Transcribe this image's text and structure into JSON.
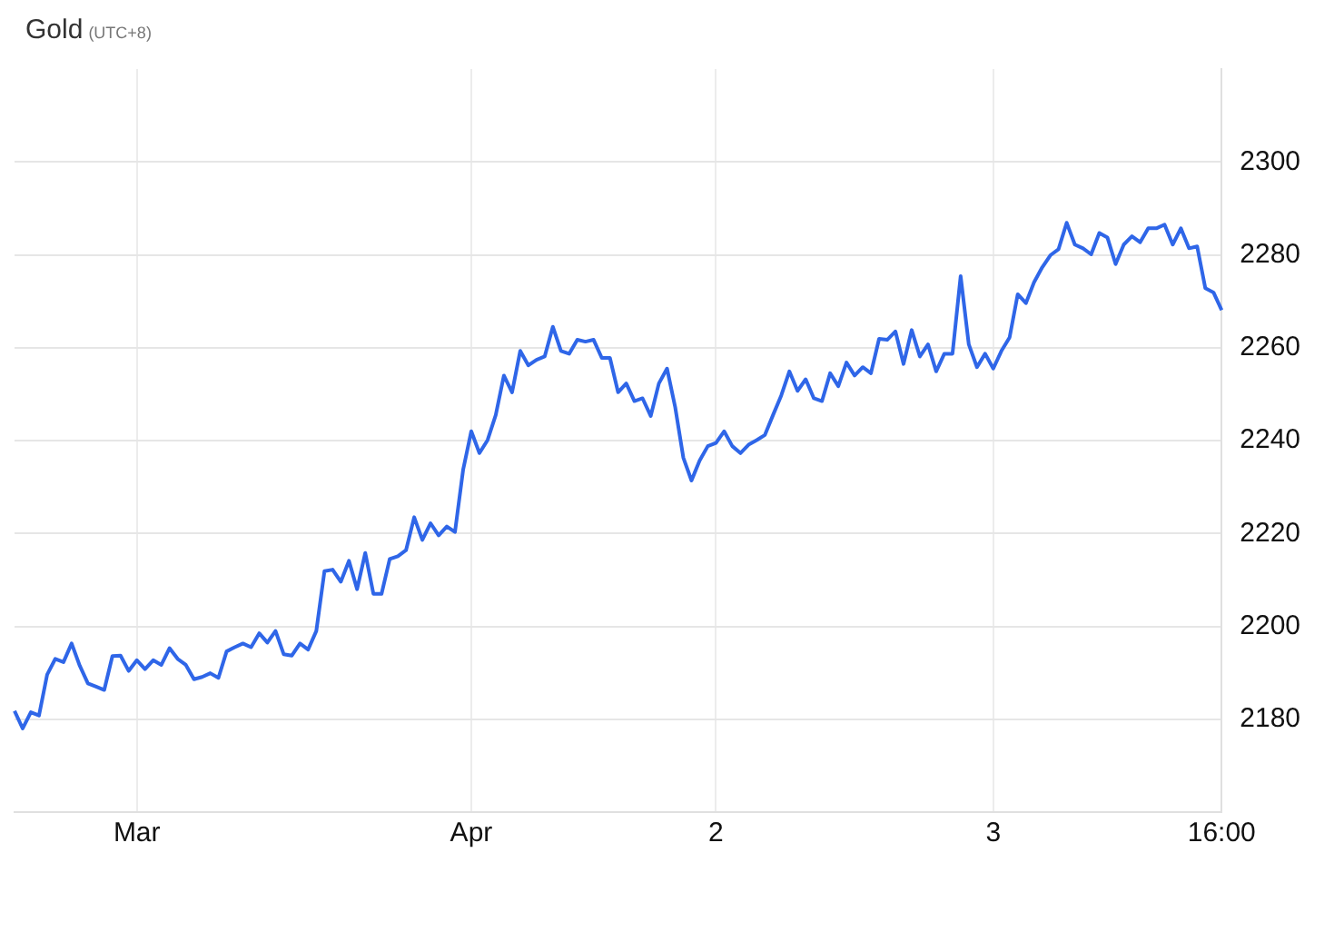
{
  "chart_data": {
    "type": "line",
    "title": "Gold",
    "subtitle": "(UTC+8)",
    "categories": [
      null,
      null,
      null,
      null,
      null,
      null,
      null,
      null,
      null,
      null,
      null,
      null,
      null,
      null,
      null,
      "Mar",
      null,
      null,
      null,
      null,
      null,
      null,
      null,
      null,
      null,
      null,
      null,
      null,
      null,
      null,
      null,
      null,
      null,
      null,
      null,
      null,
      null,
      null,
      null,
      null,
      null,
      null,
      null,
      null,
      null,
      null,
      null,
      null,
      null,
      null,
      null,
      null,
      null,
      null,
      null,
      null,
      "Apr",
      null,
      null,
      null,
      null,
      null,
      null,
      null,
      null,
      null,
      null,
      null,
      null,
      null,
      null,
      null,
      null,
      null,
      null,
      null,
      null,
      null,
      null,
      null,
      null,
      null,
      null,
      null,
      null,
      null,
      "2",
      null,
      null,
      null,
      null,
      null,
      null,
      null,
      null,
      null,
      null,
      null,
      null,
      null,
      null,
      null,
      null,
      null,
      null,
      null,
      null,
      null,
      null,
      null,
      null,
      null,
      null,
      null,
      null,
      null,
      null,
      null,
      null,
      null,
      "3",
      null,
      null,
      null,
      null,
      null,
      null,
      null,
      null,
      null,
      null,
      null,
      null,
      null,
      null,
      null,
      null,
      null,
      null,
      null,
      null,
      null,
      null,
      null,
      null,
      null,
      null,
      null,
      "16:00"
    ],
    "values": [
      2181.8,
      2178,
      2181.5,
      2180.8,
      2189.6,
      2193,
      2192.3,
      2196.3,
      2191.5,
      2187.7,
      2187,
      2186.3,
      2193.6,
      2193.7,
      2190.4,
      2192.7,
      2190.8,
      2192.7,
      2191.7,
      2195.3,
      2193,
      2191.7,
      2188.6,
      2189.1,
      2189.9,
      2188.9,
      2194.6,
      2195.5,
      2196.3,
      2195.5,
      2198.5,
      2196.5,
      2199,
      2194,
      2193.7,
      2196.3,
      2195,
      2199,
      2211.9,
      2212.2,
      2209.6,
      2214.1,
      2208,
      2215.8,
      2207,
      2207,
      2214.5,
      2215.1,
      2216.4,
      2223.5,
      2218.6,
      2222.2,
      2219.6,
      2221.5,
      2220.3,
      2233.7,
      2242,
      2237.3,
      2240.1,
      2245.5,
      2254,
      2250.4,
      2259.3,
      2256.2,
      2257.4,
      2258.1,
      2264.5,
      2259.3,
      2258.7,
      2261.7,
      2261.3,
      2261.7,
      2257.8,
      2257.8,
      2250.4,
      2252.3,
      2248.5,
      2249.1,
      2245.3,
      2252.3,
      2255.5,
      2247.2,
      2236.3,
      2231.4,
      2235.7,
      2238.8,
      2239.5,
      2242,
      2238.8,
      2237.3,
      2239.1,
      2240.1,
      2241.2,
      2245.5,
      2249.7,
      2254.9,
      2250.7,
      2253.2,
      2249.1,
      2248.5,
      2254.5,
      2251.7,
      2256.8,
      2254,
      2255.8,
      2254.5,
      2261.9,
      2261.7,
      2263.5,
      2256.5,
      2263.8,
      2258.1,
      2260.7,
      2254.9,
      2258.7,
      2258.7,
      2275.4,
      2260.7,
      2255.8,
      2258.7,
      2255.5,
      2259.3,
      2262.2,
      2271.5,
      2269.6,
      2274.1,
      2277.3,
      2279.9,
      2281.2,
      2286.9,
      2282.2,
      2281.4,
      2280.1,
      2284.7,
      2283.7,
      2278,
      2282.2,
      2284,
      2282.7,
      2285.7,
      2285.7,
      2286.5,
      2282.2,
      2285.7,
      2281.4,
      2281.8,
      2272.8,
      2271.9,
      2268.1
    ],
    "color": "#2f66e8",
    "ylim": [
      2160,
      2320
    ],
    "yticks": [
      2180,
      2200,
      2220,
      2240,
      2260,
      2280,
      2300
    ],
    "grid": true,
    "legend": false,
    "marker": "none",
    "line_style": "solid"
  }
}
